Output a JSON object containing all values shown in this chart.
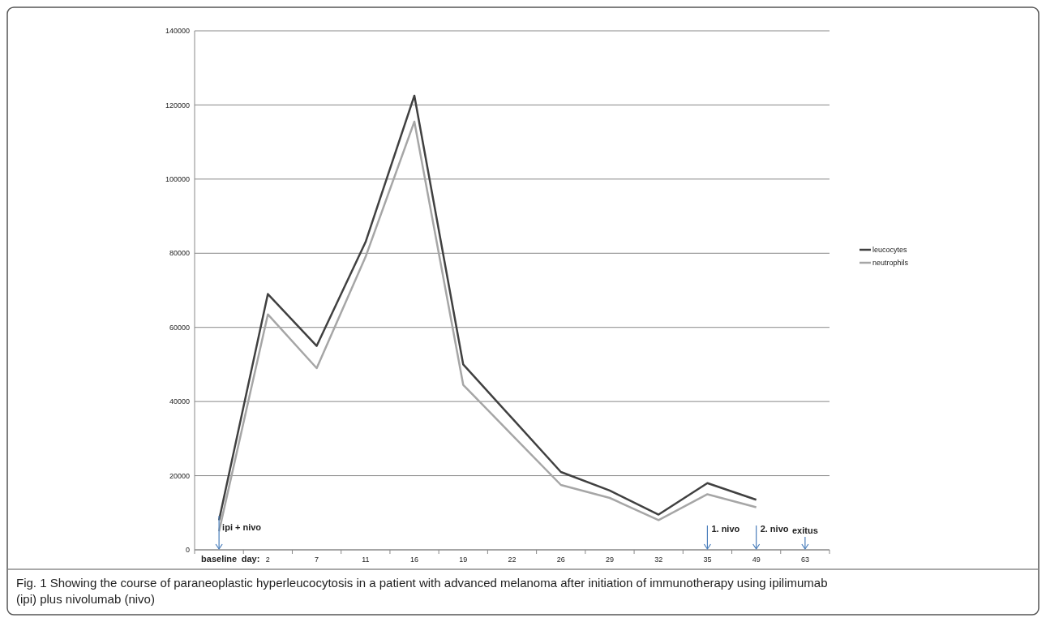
{
  "chart_data": {
    "type": "line",
    "categories": [
      "baseline",
      "2",
      "7",
      "11",
      "16",
      "19",
      "22",
      "26",
      "29",
      "32",
      "35",
      "49",
      "63"
    ],
    "xlabel": "day:",
    "series": [
      {
        "name": "leucocytes",
        "color": "#404040",
        "values": [
          8000,
          69000,
          55000,
          83000,
          122500,
          50000,
          35500,
          21000,
          16000,
          9500,
          18000,
          13500,
          null
        ]
      },
      {
        "name": "neutrophils",
        "color": "#a6a6a6",
        "values": [
          5000,
          63500,
          49000,
          79000,
          115500,
          44500,
          31000,
          17500,
          14000,
          8000,
          15000,
          11500,
          null
        ]
      }
    ],
    "ylim": [
      0,
      140000
    ],
    "yticks": [
      0,
      20000,
      40000,
      60000,
      80000,
      100000,
      120000,
      140000
    ],
    "grid": "y",
    "legend": "right",
    "marker": "none",
    "line_style": "solid",
    "ref_lines": [
      {
        "axis": "x",
        "value": "baseline",
        "label": "ipi + nivo",
        "color": "#4a7ebb"
      },
      {
        "axis": "x",
        "value": "35",
        "label": "1. nivo",
        "color": "#4a7ebb"
      },
      {
        "axis": "x",
        "value": "49",
        "label": "2. nivo",
        "color": "#4a7ebb"
      },
      {
        "axis": "x",
        "value": "63",
        "label": "exitus",
        "color": "#4a7ebb"
      }
    ],
    "annotations": [
      "Fig. 1 Showing the course of paraneoplastic hyperleucocytosis in a patient with advanced melanoma after initiation of immunotherapy using ipilimumab (ipi) plus nivolumab (nivo)"
    ]
  }
}
